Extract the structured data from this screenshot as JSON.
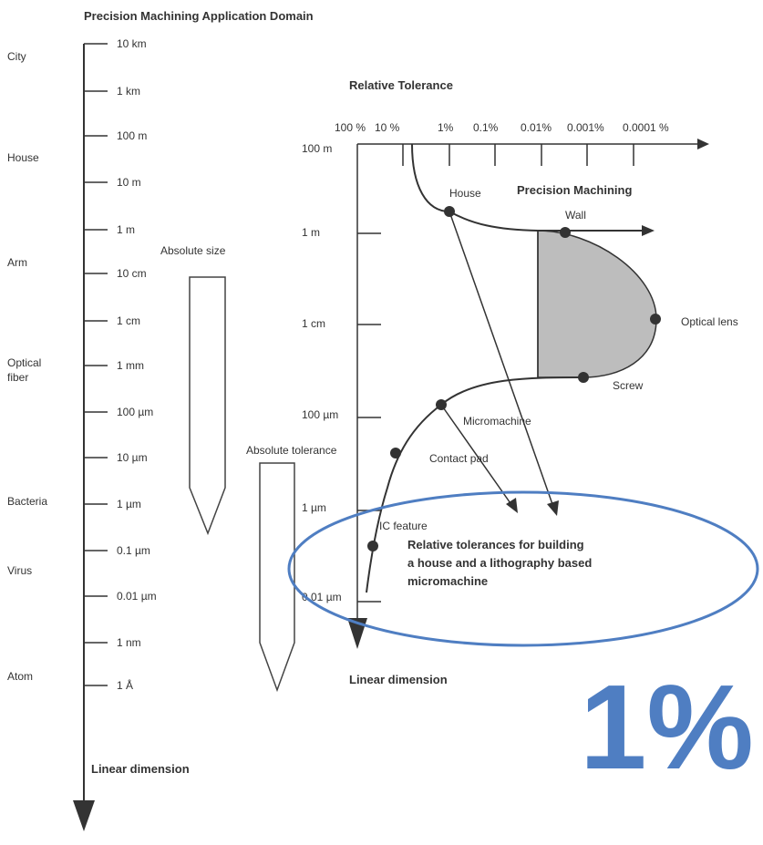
{
  "title": "Precision Machining Application Domain",
  "left_scale": {
    "ticks": [
      "10 km",
      "1 km",
      "100 m",
      "10 m",
      "1 m",
      "10 cm",
      "1 cm",
      "1 mm",
      "100 µm",
      "10 µm",
      "1 µm",
      "0.1 µm",
      "0.01 µm",
      "1 nm",
      "1 Å"
    ],
    "objects": [
      "City",
      "House",
      "Arm",
      "Optical",
      "fiber",
      "Bacteria",
      "Virus",
      "Atom"
    ],
    "axis_label": "Linear dimension"
  },
  "absolute_size_label": "Absolute size",
  "absolute_tolerance_label": "Absolute tolerance",
  "right_chart": {
    "top_title": "Relative Tolerance",
    "top_ticks": [
      "100 %",
      "10 %",
      "1%",
      "0.1%",
      "0.01%",
      "0.001%",
      "0.0001 %"
    ],
    "left_ticks": [
      "100 m",
      "1 m",
      "1 cm",
      "100 µm",
      "1 µm",
      "0.01 µm"
    ],
    "axis_label": "Linear dimension",
    "region_label": "Precision Machining",
    "points": [
      "House",
      "Wall",
      "Optical lens",
      "Screw",
      "Micromachine",
      "Contact pad",
      "IC feature"
    ],
    "note_lines": [
      "Relative tolerances for building",
      "a house and a lithography based",
      "micromachine"
    ]
  },
  "highlight_text": "1%",
  "colors": {
    "ink": "#333333",
    "region_fill": "#bdbdbd",
    "highlight": "#4f7ec2"
  }
}
